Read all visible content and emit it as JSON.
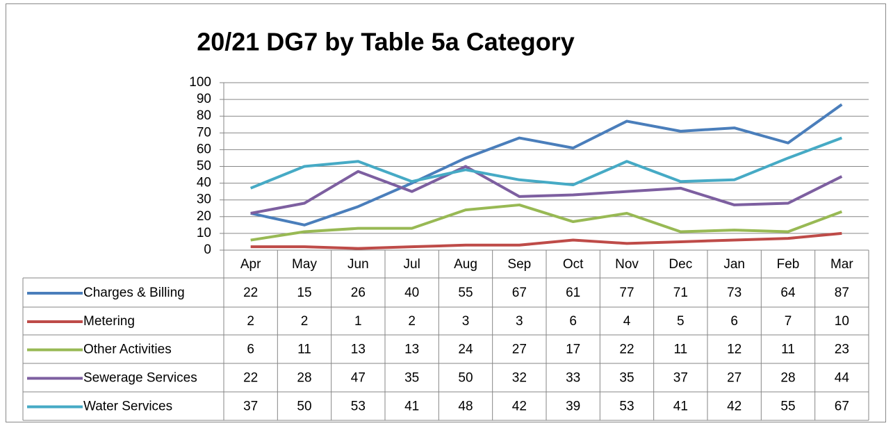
{
  "chart_data": {
    "type": "line",
    "title": "20/21 DG7 by Table 5a Category",
    "categories": [
      "Apr",
      "May",
      "Jun",
      "Jul",
      "Aug",
      "Sep",
      "Oct",
      "Nov",
      "Dec",
      "Jan",
      "Feb",
      "Mar"
    ],
    "series": [
      {
        "name": "Charges & Billing",
        "color": "#4a7ebb",
        "values": [
          22,
          15,
          26,
          40,
          55,
          67,
          61,
          77,
          71,
          73,
          64,
          87
        ]
      },
      {
        "name": "Metering",
        "color": "#be4b48",
        "values": [
          2,
          2,
          1,
          2,
          3,
          3,
          6,
          4,
          5,
          6,
          7,
          10
        ]
      },
      {
        "name": "Other Activities",
        "color": "#98b954",
        "values": [
          6,
          11,
          13,
          13,
          24,
          27,
          17,
          22,
          11,
          12,
          11,
          23
        ]
      },
      {
        "name": "Sewerage Services",
        "color": "#7d5fa0",
        "values": [
          22,
          28,
          47,
          35,
          50,
          32,
          33,
          35,
          37,
          27,
          28,
          44
        ]
      },
      {
        "name": "Water Services",
        "color": "#46aac5",
        "values": [
          37,
          50,
          53,
          41,
          48,
          42,
          39,
          53,
          41,
          42,
          55,
          67
        ]
      }
    ],
    "ylim": [
      0,
      100
    ],
    "yticks": [
      0,
      10,
      20,
      30,
      40,
      50,
      60,
      70,
      80,
      90,
      100
    ],
    "grid": true
  }
}
